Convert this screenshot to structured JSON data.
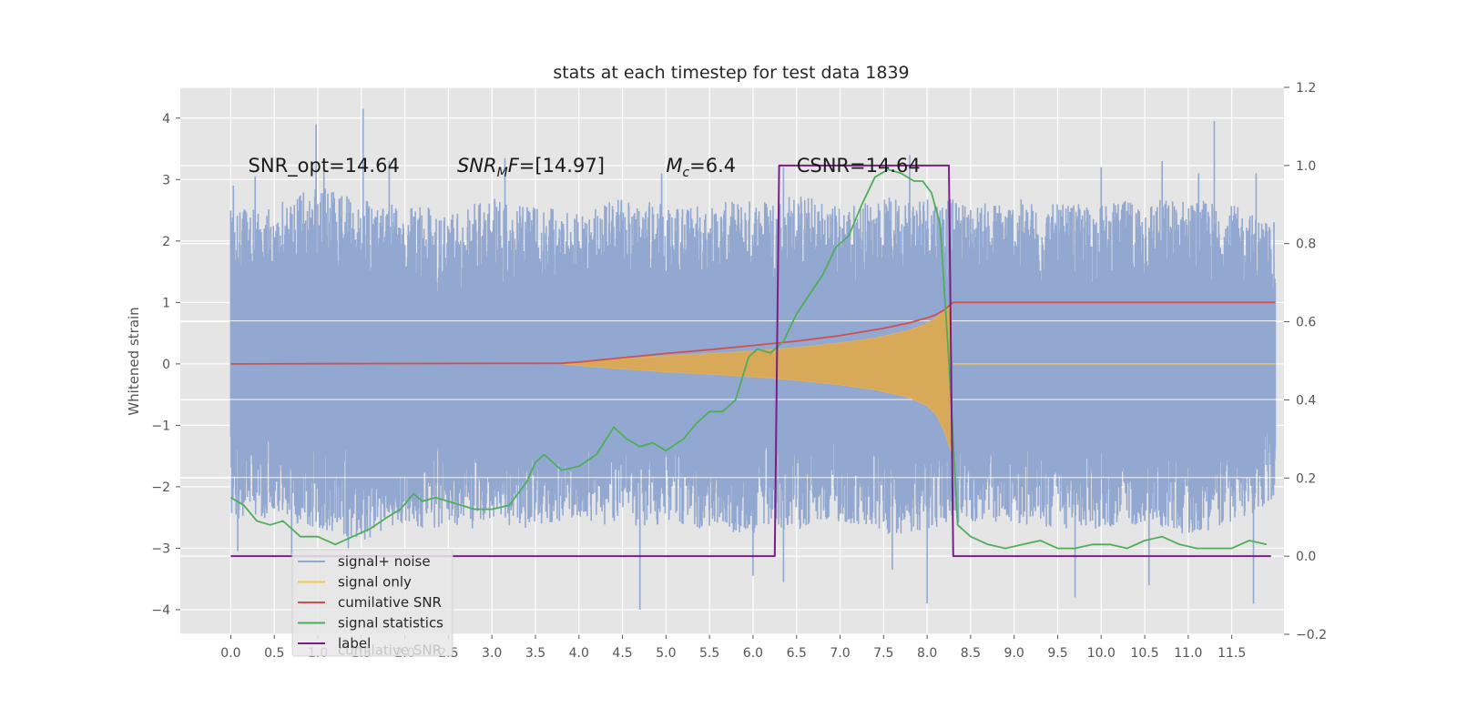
{
  "chart_data": {
    "type": "line",
    "title": "stats at each timestep for test data 1839",
    "ylabel": "Whitened strain",
    "xlim": [
      -0.58,
      12.1
    ],
    "ylim": [
      -4.4,
      4.5
    ],
    "y2lim": [
      -0.2,
      1.2
    ],
    "x_ticks": [
      "0.0",
      "0.5",
      "1.0",
      "1.5",
      "2.0",
      "2.5",
      "3.0",
      "3.5",
      "4.0",
      "4.5",
      "5.0",
      "5.5",
      "6.0",
      "6.5",
      "7.0",
      "7.5",
      "8.0",
      "8.5",
      "9.0",
      "9.5",
      "10.0",
      "10.5",
      "11.0",
      "11.5"
    ],
    "y_ticks": [
      "4",
      "3",
      "2",
      "1",
      "0",
      "−1",
      "−2",
      "−3",
      "−4"
    ],
    "y2_ticks": [
      "1.2",
      "1.0",
      "0.8",
      "0.6",
      "0.4",
      "0.2",
      "0.0",
      "−0.2"
    ],
    "grid": true,
    "annotations": [
      {
        "text": "SNR_opt=14.64",
        "x": 0.2,
        "y": 3.2
      },
      {
        "html": "<tspan font-style=\"italic\">SNR</tspan><tspan font-style=\"italic\" font-size=\"14\" dy=\"5\">M</tspan><tspan font-style=\"italic\" dy=\"-5\">F</tspan><tspan>=[14.97]</tspan>",
        "x": 2.6,
        "y": 3.2
      },
      {
        "html": "<tspan font-style=\"italic\">M</tspan><tspan font-style=\"italic\" font-size=\"14\" dy=\"5\">c</tspan><tspan dy=\"-5\">=6.4</tspan>",
        "x": 5.0,
        "y": 3.2
      },
      {
        "text": "CSNR=14.64",
        "x": 6.5,
        "y": 3.2
      }
    ],
    "legend": {
      "position": "lower-left",
      "entries": [
        {
          "label": "signal+ noise",
          "color": "#92a8d1"
        },
        {
          "label": "signal only",
          "color": "#f2c552"
        },
        {
          "label": "cumilative SNR",
          "color": "#d05050"
        },
        {
          "label": "signal statistics",
          "color": "#4fae5a"
        },
        {
          "label": "label",
          "color": "#7b1f86"
        }
      ],
      "ghost_text": "cumilative SNR"
    },
    "series": [
      {
        "name": "signal+ noise",
        "axis": "left",
        "color": "#92a8d1",
        "envelope_x": [
          0.0,
          0.5,
          1.0,
          1.5,
          2.0,
          2.5,
          3.0,
          3.5,
          4.0,
          4.5,
          5.0,
          5.5,
          6.0,
          6.5,
          7.0,
          7.5,
          8.0,
          8.5,
          9.0,
          9.5,
          10.0,
          10.5,
          11.0,
          11.5,
          12.0
        ],
        "envelope_upper": [
          2.5,
          2.6,
          2.9,
          2.7,
          2.6,
          2.5,
          2.7,
          2.6,
          2.5,
          2.7,
          2.6,
          2.6,
          2.7,
          2.8,
          2.6,
          2.7,
          2.8,
          2.6,
          2.7,
          2.6,
          2.6,
          2.7,
          2.7,
          2.6,
          2.3
        ],
        "envelope_lower": [
          -2.6,
          -2.5,
          -2.7,
          -2.9,
          -2.6,
          -2.8,
          -2.6,
          -2.7,
          -2.5,
          -2.7,
          -2.6,
          -2.7,
          -2.8,
          -2.7,
          -2.6,
          -2.8,
          -2.7,
          -2.6,
          -2.6,
          -2.7,
          -2.7,
          -2.6,
          -2.8,
          -2.6,
          -2.3
        ],
        "spikes": [
          {
            "x": 0.03,
            "y": 2.9
          },
          {
            "x": 0.28,
            "y": 3.05
          },
          {
            "x": 0.98,
            "y": 3.9
          },
          {
            "x": 1.07,
            "y": 3.3
          },
          {
            "x": 1.52,
            "y": 4.15
          },
          {
            "x": 1.82,
            "y": 3.3
          },
          {
            "x": 3.15,
            "y": 3.35
          },
          {
            "x": 4.95,
            "y": 3.1
          },
          {
            "x": 6.35,
            "y": 3.2
          },
          {
            "x": 7.8,
            "y": 3.4
          },
          {
            "x": 10.0,
            "y": 3.2
          },
          {
            "x": 10.7,
            "y": 3.3
          },
          {
            "x": 11.12,
            "y": 3.1
          },
          {
            "x": 11.3,
            "y": 3.95
          },
          {
            "x": 11.78,
            "y": 3.1
          },
          {
            "x": 0.08,
            "y": -3.05
          },
          {
            "x": 0.7,
            "y": -3.1
          },
          {
            "x": 1.35,
            "y": -3.0
          },
          {
            "x": 4.7,
            "y": -4.0
          },
          {
            "x": 6.0,
            "y": -3.45
          },
          {
            "x": 6.35,
            "y": -3.55
          },
          {
            "x": 7.6,
            "y": -3.35
          },
          {
            "x": 8.0,
            "y": -3.9
          },
          {
            "x": 9.7,
            "y": -3.8
          },
          {
            "x": 10.55,
            "y": -3.6
          },
          {
            "x": 11.75,
            "y": -3.9
          }
        ]
      },
      {
        "name": "signal only",
        "axis": "left",
        "color": "#f2c552",
        "x": [
          3.8,
          4.2,
          4.6,
          5.0,
          5.4,
          5.8,
          6.2,
          6.6,
          7.0,
          7.4,
          7.8,
          8.0,
          8.1,
          8.2,
          8.28
        ],
        "upper": [
          0.0,
          0.05,
          0.09,
          0.13,
          0.16,
          0.19,
          0.23,
          0.28,
          0.34,
          0.42,
          0.55,
          0.66,
          0.75,
          0.86,
          0.95
        ],
        "lower": [
          0.0,
          -0.05,
          -0.09,
          -0.13,
          -0.16,
          -0.19,
          -0.23,
          -0.28,
          -0.34,
          -0.42,
          -0.55,
          -0.68,
          -0.82,
          -1.1,
          -1.45
        ],
        "tail_x": [
          8.3,
          12.0
        ],
        "tail_y": [
          0.0,
          0.0
        ]
      },
      {
        "name": "cumilative SNR",
        "axis": "left",
        "color": "#d05050",
        "x": [
          0.0,
          3.8,
          4.0,
          4.5,
          5.0,
          5.5,
          6.0,
          6.5,
          7.0,
          7.5,
          7.8,
          8.0,
          8.1,
          8.2,
          8.27,
          8.3,
          12.0
        ],
        "y": [
          0.0,
          0.01,
          0.03,
          0.1,
          0.17,
          0.23,
          0.3,
          0.37,
          0.46,
          0.58,
          0.67,
          0.75,
          0.8,
          0.88,
          0.97,
          1.0,
          1.0
        ]
      },
      {
        "name": "signal statistics",
        "axis": "right",
        "color": "#4fae5a",
        "x": [
          0.0,
          0.15,
          0.3,
          0.45,
          0.6,
          0.8,
          1.0,
          1.2,
          1.4,
          1.6,
          1.8,
          1.95,
          2.1,
          2.2,
          2.35,
          2.5,
          2.65,
          2.8,
          3.0,
          3.2,
          3.4,
          3.5,
          3.6,
          3.8,
          4.0,
          4.2,
          4.4,
          4.55,
          4.7,
          4.85,
          5.0,
          5.2,
          5.35,
          5.5,
          5.65,
          5.8,
          5.95,
          6.05,
          6.2,
          6.35,
          6.5,
          6.65,
          6.8,
          6.95,
          7.1,
          7.25,
          7.4,
          7.55,
          7.7,
          7.85,
          7.95,
          8.05,
          8.15,
          8.25,
          8.35,
          8.5,
          8.7,
          8.9,
          9.1,
          9.3,
          9.5,
          9.7,
          9.9,
          10.1,
          10.3,
          10.5,
          10.7,
          10.9,
          11.1,
          11.3,
          11.5,
          11.7,
          11.9
        ],
        "y": [
          0.15,
          0.13,
          0.09,
          0.08,
          0.09,
          0.05,
          0.05,
          0.03,
          0.05,
          0.07,
          0.1,
          0.12,
          0.16,
          0.14,
          0.15,
          0.14,
          0.13,
          0.12,
          0.12,
          0.13,
          0.19,
          0.24,
          0.26,
          0.22,
          0.23,
          0.26,
          0.33,
          0.3,
          0.28,
          0.29,
          0.27,
          0.3,
          0.34,
          0.37,
          0.37,
          0.4,
          0.51,
          0.53,
          0.52,
          0.55,
          0.62,
          0.67,
          0.72,
          0.79,
          0.82,
          0.9,
          0.97,
          0.99,
          0.98,
          0.96,
          0.96,
          0.93,
          0.85,
          0.5,
          0.08,
          0.05,
          0.03,
          0.02,
          0.03,
          0.04,
          0.02,
          0.02,
          0.03,
          0.03,
          0.02,
          0.04,
          0.05,
          0.03,
          0.02,
          0.02,
          0.02,
          0.04,
          0.03
        ]
      },
      {
        "name": "label",
        "axis": "right",
        "color": "#7b1f86",
        "x": [
          0.0,
          6.25,
          6.3,
          8.25,
          8.3,
          11.95
        ],
        "y": [
          0.0,
          0.0,
          1.0,
          1.0,
          0.0,
          0.0
        ]
      }
    ]
  }
}
